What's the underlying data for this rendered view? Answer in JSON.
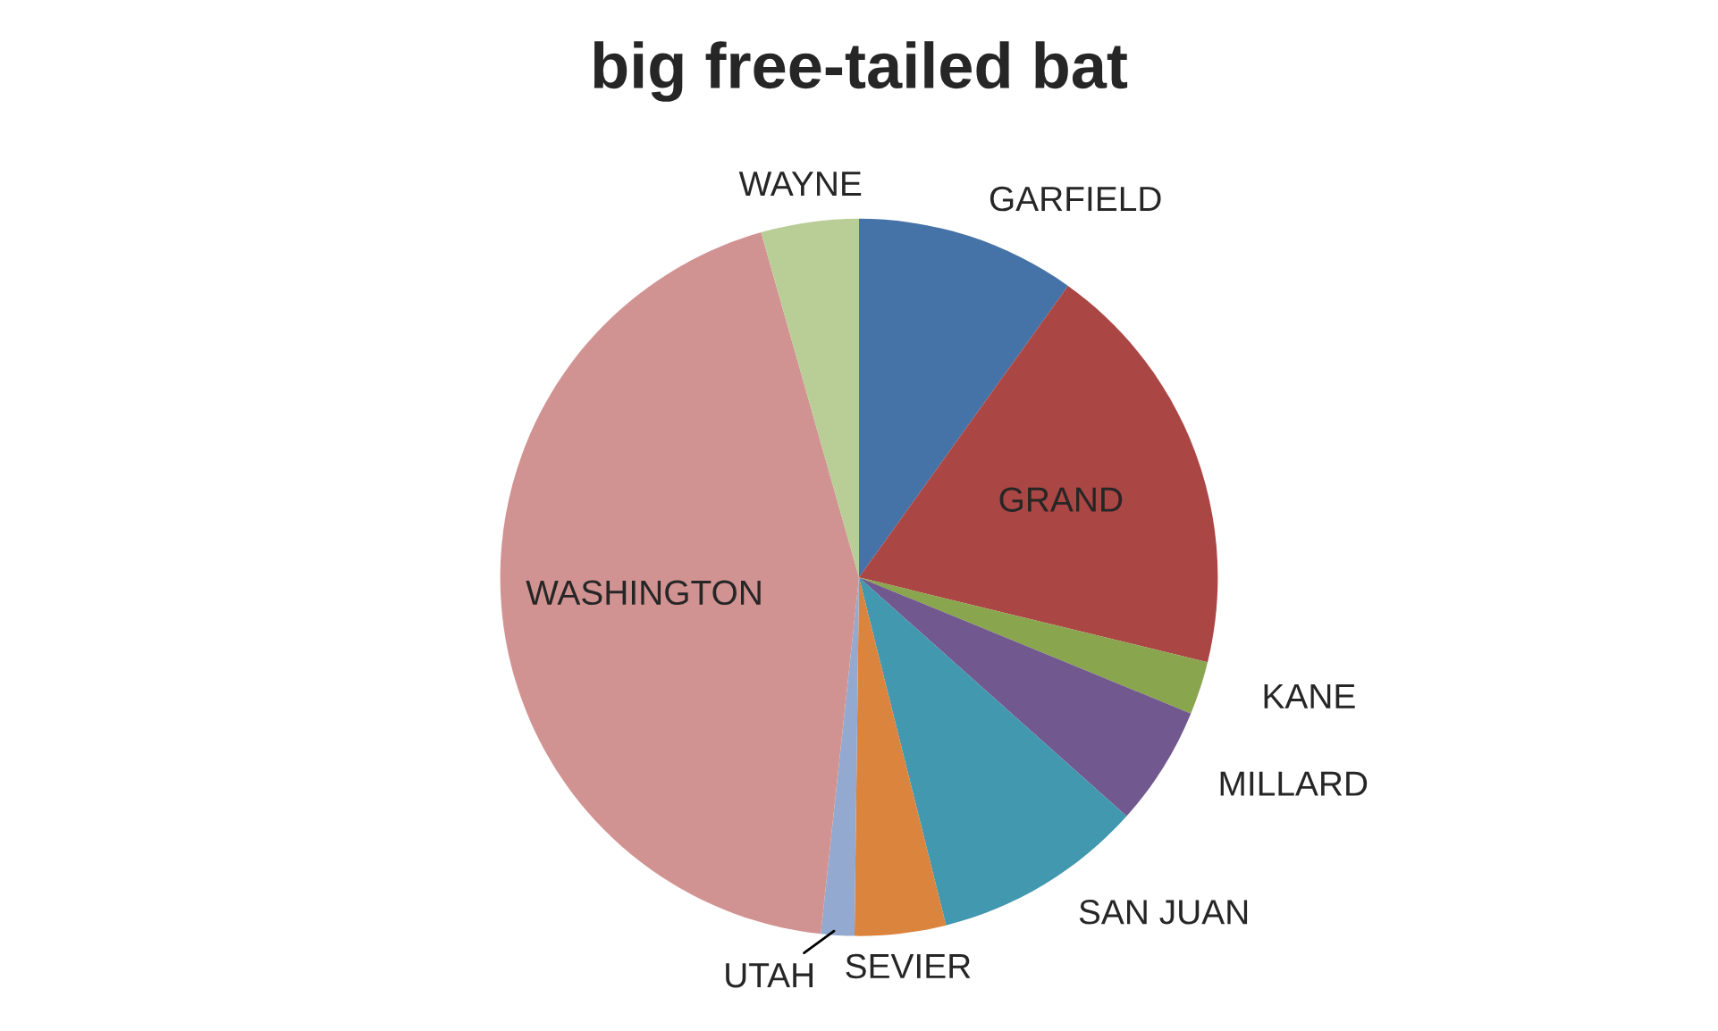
{
  "chart_data": {
    "type": "pie",
    "title": "big free-tailed bat",
    "categories": [
      "GARFIELD",
      "GRAND",
      "KANE",
      "MILLARD",
      "SAN JUAN",
      "SEVIER",
      "UTAH",
      "WASHINGTON",
      "WAYNE"
    ],
    "values": [
      9.9,
      18.9,
      2.4,
      5.4,
      9.5,
      4.1,
      1.5,
      43.9,
      4.4
    ],
    "colors": [
      "#4572a7",
      "#aa4643",
      "#89a54e",
      "#71588f",
      "#4198af",
      "#db843d",
      "#93a9cf",
      "#d19392",
      "#b9cd96"
    ],
    "legend": false
  }
}
